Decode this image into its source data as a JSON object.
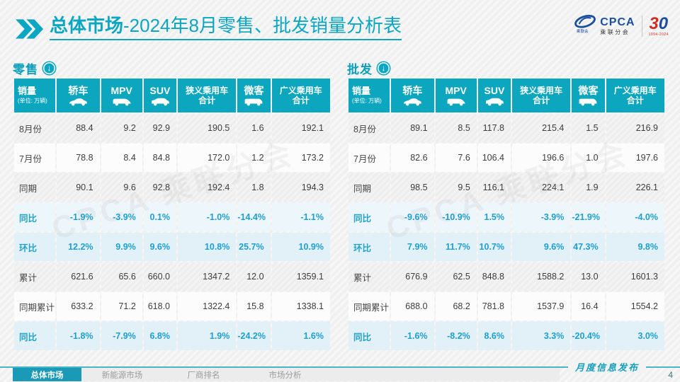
{
  "title": {
    "bold": "总体市场",
    "rest": "-2024年8月零售、批发销量分析表"
  },
  "logos": {
    "cpca_text": "CPCA",
    "cpca_sub": "乘联分会",
    "anniv_3": "3",
    "anniv_0": "0",
    "anniv_years": "1994-2024"
  },
  "columns": [
    {
      "label": "销量",
      "sub": "(单位: 万辆)",
      "icon": null
    },
    {
      "label": "轿车",
      "icon": "sedan-icon"
    },
    {
      "label": "MPV",
      "icon": "mpv-icon"
    },
    {
      "label": "SUV",
      "icon": "suv-icon"
    },
    {
      "label": "狭义乘用车",
      "label2": "合计",
      "icon": null
    },
    {
      "label": "微客",
      "icon": "minibus-icon"
    },
    {
      "label": "广义乘用车",
      "label2": "合计",
      "icon": null
    }
  ],
  "tables": [
    {
      "name": "retail",
      "title": "零售",
      "trend_icon": "down-arrow-icon",
      "rows": [
        {
          "label": "8月份",
          "type": "data",
          "values": [
            "88.4",
            "9.2",
            "92.9",
            "190.5",
            "1.6",
            "192.1"
          ]
        },
        {
          "label": "7月份",
          "type": "data",
          "values": [
            "78.8",
            "8.4",
            "84.8",
            "172.0",
            "1.2",
            "173.2"
          ]
        },
        {
          "label": "同期",
          "type": "data",
          "values": [
            "90.1",
            "9.6",
            "92.8",
            "192.4",
            "1.8",
            "194.3"
          ]
        },
        {
          "label": "同比",
          "type": "pct",
          "values": [
            "-1.9%",
            "-3.9%",
            "0.1%",
            "-1.0%",
            "-14.4%",
            "-1.1%"
          ]
        },
        {
          "label": "环比",
          "type": "pct",
          "values": [
            "12.2%",
            "9.9%",
            "9.6%",
            "10.8%",
            "25.7%",
            "10.9%"
          ]
        },
        {
          "label": "累计",
          "type": "data",
          "values": [
            "621.6",
            "65.6",
            "660.0",
            "1347.2",
            "12.0",
            "1359.1"
          ]
        },
        {
          "label": "同期累计",
          "type": "data",
          "values": [
            "633.2",
            "71.2",
            "618.0",
            "1322.4",
            "15.8",
            "1338.1"
          ]
        },
        {
          "label": "同比",
          "type": "pct",
          "values": [
            "-1.8%",
            "-7.9%",
            "6.8%",
            "1.9%",
            "-24.2%",
            "1.6%"
          ]
        }
      ]
    },
    {
      "name": "wholesale",
      "title": "批发",
      "trend_icon": "down-arrow-icon",
      "rows": [
        {
          "label": "8月份",
          "type": "data",
          "values": [
            "89.1",
            "8.5",
            "117.8",
            "215.4",
            "1.5",
            "216.9"
          ]
        },
        {
          "label": "7月份",
          "type": "data",
          "values": [
            "82.6",
            "7.6",
            "106.4",
            "196.6",
            "1.0",
            "197.6"
          ]
        },
        {
          "label": "同期",
          "type": "data",
          "values": [
            "98.5",
            "9.5",
            "116.1",
            "224.1",
            "1.9",
            "226.1"
          ]
        },
        {
          "label": "同比",
          "type": "pct",
          "values": [
            "-9.6%",
            "-10.9%",
            "1.5%",
            "-3.9%",
            "-21.9%",
            "-4.0%"
          ]
        },
        {
          "label": "环比",
          "type": "pct",
          "values": [
            "7.9%",
            "11.7%",
            "10.7%",
            "9.6%",
            "47.3%",
            "9.8%"
          ]
        },
        {
          "label": "累计",
          "type": "data",
          "values": [
            "676.9",
            "62.5",
            "848.8",
            "1588.2",
            "13.0",
            "1601.3"
          ]
        },
        {
          "label": "同期累计",
          "type": "data",
          "values": [
            "688.0",
            "68.2",
            "781.8",
            "1537.9",
            "16.4",
            "1554.2"
          ]
        },
        {
          "label": "同比",
          "type": "pct",
          "values": [
            "-1.6%",
            "-8.2%",
            "8.6%",
            "3.3%",
            "-20.4%",
            "3.0%"
          ]
        }
      ]
    }
  ],
  "footer": {
    "tabs": [
      {
        "label": "总体市场",
        "active": true
      },
      {
        "label": "新能源市场",
        "active": false
      },
      {
        "label": "厂商排名",
        "active": false
      },
      {
        "label": "市场分析",
        "active": false
      }
    ],
    "release_label": "月度信息发布",
    "page_number": "4"
  },
  "watermark": "CPCA 乘联分会",
  "colors": {
    "accent": "#0ba6c1",
    "table_header_bg": "#0ca7be",
    "pct_text": "#1d9fd1",
    "pct_row_bg": "#e2f1f8",
    "logo_blue": "#1c4e9e",
    "logo_red": "#d42a20",
    "footer_active_tab": "#1a9ab6"
  }
}
